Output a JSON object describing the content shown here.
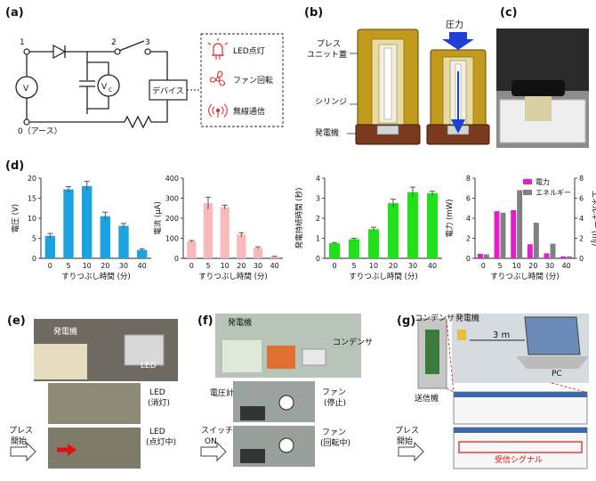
{
  "panels": {
    "a": {
      "label": "(a)",
      "node1": "1",
      "node2": "2",
      "node3": "3",
      "node0": "0（アース）",
      "meter_v": "V",
      "meter_vc": "V",
      "meter_vc_sub": "C",
      "device": "デバイス",
      "outputs": [
        "LED点灯",
        "ファン回転",
        "無線通信"
      ],
      "icons": [
        "led-icon",
        "fan-icon",
        "wireless-icon"
      ]
    },
    "b": {
      "label": "(b)",
      "lid": "プレス\nユニット蓋",
      "syringe": "シリンジ",
      "generator": "発電機",
      "pressure": "圧力"
    },
    "c": {
      "label": "(c)"
    },
    "d": {
      "label": "(d)"
    },
    "e": {
      "label": "(e)",
      "generator": "発電機",
      "led": "LED",
      "led_off": "LED\n(消灯)",
      "led_on": "LED\n(点灯中)",
      "press": "プレス\n開始"
    },
    "f": {
      "label": "(f)",
      "generator": "発電機",
      "capacitor": "コンデンサ",
      "voltmeter": "電圧計",
      "fan_stop": "ファン\n(停止)",
      "switch": "スイッチ\nON",
      "fan_run": "ファン\n(回転中)"
    },
    "g": {
      "label": "(g)",
      "capacitor": "コンデンサ",
      "generator": "発電機",
      "distance": "3 m",
      "pc": "PC",
      "transmitter": "送信機",
      "press": "プレス\n開始",
      "received": "受信シグナル"
    }
  },
  "chart_data": [
    {
      "type": "bar",
      "name": "voltage",
      "categories": [
        "0",
        "5",
        "10",
        "20",
        "30",
        "40"
      ],
      "values": [
        5.6,
        17.2,
        18.0,
        10.5,
        8.1,
        2.1
      ],
      "errors": [
        0.6,
        0.7,
        1.2,
        1.0,
        0.6,
        0.3
      ],
      "xlabel": "すりつぶし時間 (分)",
      "ylabel": "電圧 (V)",
      "ylim": [
        0,
        20
      ],
      "yticks": [
        "0",
        "5",
        "10",
        "15",
        "20"
      ],
      "color": "#1aa3e0"
    },
    {
      "type": "bar",
      "name": "current",
      "categories": [
        "0",
        "5",
        "10",
        "20",
        "30",
        "40"
      ],
      "values": [
        85,
        275,
        255,
        118,
        52,
        8
      ],
      "errors": [
        4,
        30,
        10,
        10,
        5,
        2
      ],
      "xlabel": "すりつぶし時間 (分)",
      "ylabel": "電流 (μA)",
      "ylim": [
        0,
        400
      ],
      "yticks": [
        "0",
        "100",
        "200",
        "300",
        "400"
      ],
      "color": "#f7b9b9"
    },
    {
      "type": "bar",
      "name": "duration",
      "categories": [
        "0",
        "5",
        "10",
        "20",
        "30",
        "40"
      ],
      "values": [
        0.75,
        0.95,
        1.45,
        2.75,
        3.3,
        3.25
      ],
      "errors": [
        0.04,
        0.05,
        0.1,
        0.2,
        0.25,
        0.1
      ],
      "xlabel": "すりつぶし時間 (分)",
      "ylabel": "発電持続時間 (秒)",
      "ylim": [
        0,
        4
      ],
      "yticks": [
        "0",
        "1",
        "2",
        "3",
        "4"
      ],
      "color": "#22e01c"
    },
    {
      "type": "bar",
      "name": "power-energy",
      "categories": [
        "0",
        "5",
        "10",
        "20",
        "30",
        "40"
      ],
      "series": [
        {
          "name": "電力",
          "values": [
            0.45,
            4.7,
            4.8,
            1.4,
            0.5,
            0.2
          ],
          "axis": "left",
          "color": "#e21ecf"
        },
        {
          "name": "エネルギー",
          "values": [
            0.4,
            4.55,
            6.8,
            3.55,
            1.45,
            0.2
          ],
          "axis": "right",
          "color": "#808080"
        }
      ],
      "xlabel": "すりつぶし時間 (分)",
      "ylabel": "電力 (mW)",
      "ylabel_right": "エネルギー (mJ)",
      "ylim": [
        0,
        8
      ],
      "ylim_right": [
        0,
        8
      ],
      "yticks": [
        "0",
        "2",
        "4",
        "6",
        "8"
      ],
      "legend": "top-right"
    }
  ]
}
